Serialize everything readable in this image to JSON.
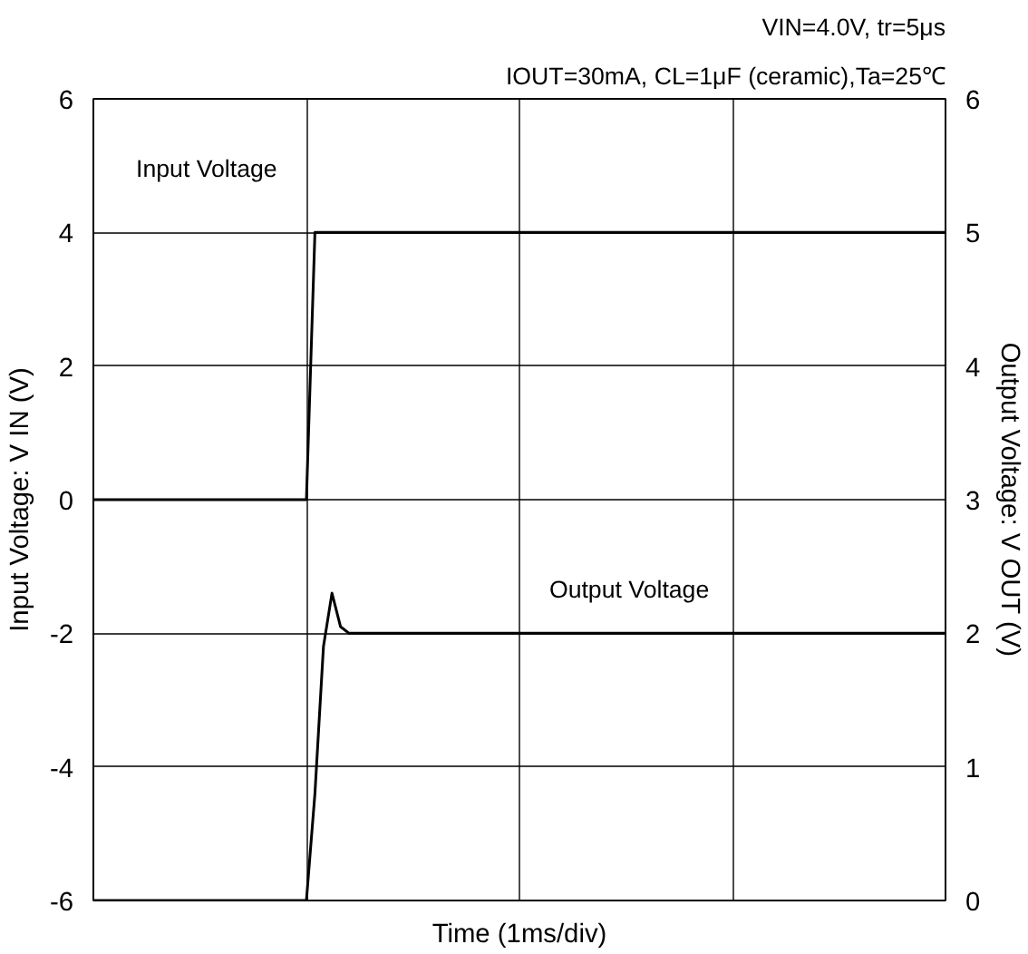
{
  "chart_data": {
    "type": "line",
    "xlabel": "Time (1ms/div)",
    "ylabel": "Input Voltage: V IN (V)",
    "y2label": "Output Voltage: V OUT (V)",
    "annotations": [
      "VIN=4.0V, tr=5μs",
      "IOUT=30mA, CL=1μF (ceramic),Ta=25℃"
    ],
    "categories": [
      null,
      null,
      null,
      null,
      null,
      null,
      null,
      null,
      null,
      null,
      null,
      null,
      null,
      null,
      null,
      null,
      null,
      null,
      null,
      null,
      null,
      null,
      null,
      null,
      null,
      null,
      null,
      null,
      null,
      null,
      null,
      null,
      null,
      null,
      null,
      null,
      null,
      null,
      null,
      null,
      null,
      null,
      null,
      null,
      null,
      null,
      null,
      null,
      null,
      null,
      null,
      null,
      null,
      null,
      null,
      null,
      null,
      null,
      null,
      null,
      null,
      null,
      null,
      null,
      null,
      null,
      null,
      null,
      null,
      null,
      null,
      null,
      null,
      null,
      null,
      null,
      null,
      null,
      null,
      null,
      null,
      null,
      null,
      null,
      null,
      null,
      null,
      null,
      null,
      null,
      null,
      null,
      null,
      null,
      null,
      null,
      null,
      null,
      null,
      null,
      null
    ],
    "ylim": [
      -6,
      6
    ],
    "yticks": [
      -6,
      -4,
      -2,
      0,
      2,
      4,
      6
    ],
    "y2lim": [
      0,
      6
    ],
    "y2ticks": [
      0,
      1,
      2,
      3,
      4,
      5,
      6
    ],
    "grid": true,
    "marker": "none",
    "line_style": "solid",
    "series": [
      {
        "name": "Input Voltage",
        "color": "#000000",
        "values": [
          0,
          0,
          0,
          0,
          0,
          0,
          0,
          0,
          0,
          0,
          0,
          0,
          0,
          0,
          0,
          0,
          0,
          0,
          0,
          0,
          0,
          0,
          0,
          0,
          0,
          0,
          4,
          4,
          4,
          4,
          4,
          4,
          4,
          4,
          4,
          4,
          4,
          4,
          4,
          4,
          4,
          4,
          4,
          4,
          4,
          4,
          4,
          4,
          4,
          4,
          4,
          4,
          4,
          4,
          4,
          4,
          4,
          4,
          4,
          4,
          4,
          4,
          4,
          4,
          4,
          4,
          4,
          4,
          4,
          4,
          4,
          4,
          4,
          4,
          4,
          4,
          4,
          4,
          4,
          4,
          4,
          4,
          4,
          4,
          4,
          4,
          4,
          4,
          4,
          4,
          4,
          4,
          4,
          4,
          4,
          4,
          4,
          4,
          4,
          4,
          4
        ]
      },
      {
        "name": "Output Voltage",
        "color": "#000000",
        "axis": "y2",
        "values": [
          0,
          0,
          0,
          0,
          0,
          0,
          0,
          0,
          0,
          0,
          0,
          0,
          0,
          0,
          0,
          0,
          0,
          0,
          0,
          0,
          0,
          0,
          0,
          0,
          0,
          0,
          0.8,
          1.9,
          2.3,
          2.05,
          2,
          2,
          2,
          2,
          2,
          2,
          2,
          2,
          2,
          2,
          2,
          2,
          2,
          2,
          2,
          2,
          2,
          2,
          2,
          2,
          2,
          2,
          2,
          2,
          2,
          2,
          2,
          2,
          2,
          2,
          2,
          2,
          2,
          2,
          2,
          2,
          2,
          2,
          2,
          2,
          2,
          2,
          2,
          2,
          2,
          2,
          2,
          2,
          2,
          2,
          2,
          2,
          2,
          2,
          2,
          2,
          2,
          2,
          2,
          2,
          2,
          2,
          2,
          2,
          2,
          2,
          2,
          2,
          2,
          2,
          2
        ]
      }
    ]
  }
}
